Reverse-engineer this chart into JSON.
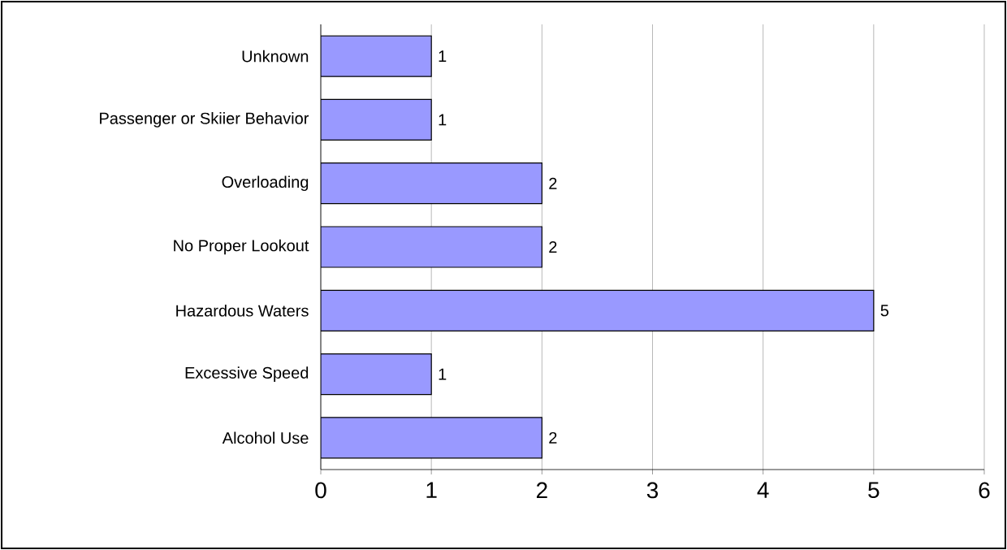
{
  "chart_data": {
    "type": "bar",
    "orientation": "horizontal",
    "categories": [
      "Unknown",
      "Passenger or Skiier Behavior",
      "Overloading",
      "No Proper Lookout",
      "Hazardous Waters",
      "Excessive Speed",
      "Alcohol Use"
    ],
    "values": [
      1,
      1,
      2,
      2,
      5,
      1,
      2
    ],
    "color": "#9999ff",
    "xlim": [
      0,
      6
    ],
    "xticks": [
      0,
      1,
      2,
      3,
      4,
      5,
      6
    ],
    "grid": "x",
    "data_labels": true
  }
}
